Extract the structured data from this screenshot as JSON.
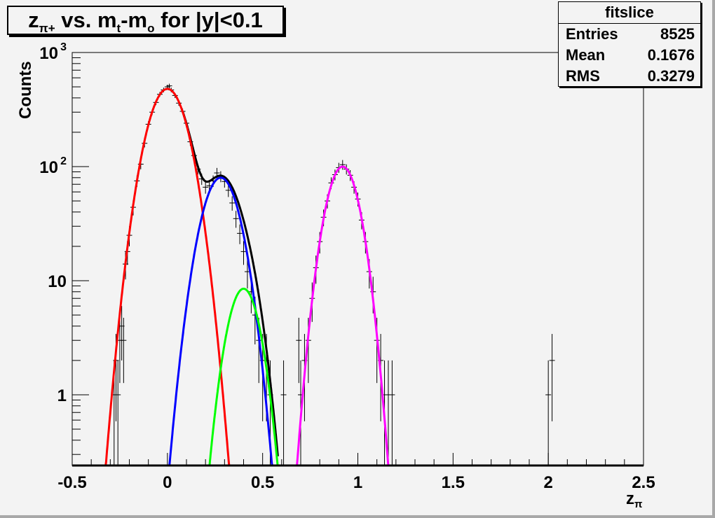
{
  "title": {
    "main": "z",
    "sub1": "π+",
    "mid": " vs. m",
    "sub2": "t",
    "mid2": "-m",
    "sub3": "o",
    "tail": " for |y|<0.1"
  },
  "stats": {
    "name": "fitslice",
    "rows": [
      {
        "label": "Entries",
        "value": "8525"
      },
      {
        "label": "Mean",
        "value": "0.1676"
      },
      {
        "label": "RMS",
        "value": "0.3279"
      }
    ]
  },
  "chart_data": {
    "type": "scatter",
    "xlabel_main": "z",
    "xlabel_sub": "π",
    "ylabel": "Counts",
    "xlim": [
      -0.5,
      2.5
    ],
    "ylim": [
      0.24,
      1000
    ],
    "yscale": "log",
    "grid": false,
    "x_ticks": [
      "-0.5",
      "0",
      "0.5",
      "1",
      "1.5",
      "2",
      "2.5"
    ],
    "y_ticks": [
      {
        "value": 1,
        "label": "1"
      },
      {
        "value": 10,
        "label": "10"
      },
      {
        "value": 100,
        "label": "10",
        "exp": "2"
      },
      {
        "value": 1000,
        "label": "10",
        "exp": "3"
      }
    ],
    "points": [
      [
        -0.28,
        1
      ],
      [
        -0.27,
        2
      ],
      [
        -0.26,
        1
      ],
      [
        -0.25,
        3
      ],
      [
        -0.24,
        4
      ],
      [
        -0.23,
        3
      ],
      [
        -0.22,
        14
      ],
      [
        -0.21,
        18
      ],
      [
        -0.2,
        25
      ],
      [
        -0.18,
        44
      ],
      [
        -0.16,
        75
      ],
      [
        -0.14,
        105
      ],
      [
        -0.12,
        160
      ],
      [
        -0.1,
        235
      ],
      [
        -0.08,
        300
      ],
      [
        -0.06,
        365
      ],
      [
        -0.04,
        430
      ],
      [
        -0.02,
        470
      ],
      [
        0.0,
        500
      ],
      [
        0.01,
        510
      ],
      [
        0.02,
        470
      ],
      [
        0.04,
        420
      ],
      [
        0.06,
        360
      ],
      [
        0.08,
        305
      ],
      [
        0.1,
        240
      ],
      [
        0.12,
        165
      ],
      [
        0.14,
        125
      ],
      [
        0.16,
        95
      ],
      [
        0.18,
        78
      ],
      [
        0.2,
        66
      ],
      [
        0.22,
        68
      ],
      [
        0.24,
        75
      ],
      [
        0.26,
        88
      ],
      [
        0.28,
        82
      ],
      [
        0.3,
        74
      ],
      [
        0.32,
        62
      ],
      [
        0.34,
        48
      ],
      [
        0.36,
        35
      ],
      [
        0.38,
        26
      ],
      [
        0.4,
        18
      ],
      [
        0.42,
        12
      ],
      [
        0.44,
        8
      ],
      [
        0.46,
        5
      ],
      [
        0.48,
        3
      ],
      [
        0.5,
        2
      ],
      [
        0.52,
        2
      ],
      [
        0.54,
        1
      ],
      [
        0.61,
        1
      ],
      [
        0.69,
        3
      ],
      [
        0.7,
        1
      ],
      [
        0.72,
        2
      ],
      [
        0.74,
        3
      ],
      [
        0.76,
        7
      ],
      [
        0.78,
        13
      ],
      [
        0.8,
        22
      ],
      [
        0.82,
        36
      ],
      [
        0.84,
        50
      ],
      [
        0.86,
        72
      ],
      [
        0.88,
        85
      ],
      [
        0.9,
        98
      ],
      [
        0.92,
        104
      ],
      [
        0.94,
        95
      ],
      [
        0.96,
        84
      ],
      [
        0.98,
        66
      ],
      [
        1.0,
        52
      ],
      [
        1.02,
        34
      ],
      [
        1.04,
        22
      ],
      [
        1.06,
        12
      ],
      [
        1.08,
        8
      ],
      [
        1.1,
        3
      ],
      [
        1.12,
        2
      ],
      [
        1.14,
        1
      ],
      [
        1.16,
        1
      ],
      [
        1.18,
        1
      ],
      [
        2.0,
        1
      ],
      [
        2.02,
        2
      ]
    ],
    "fits": [
      {
        "color": "#ff0000",
        "amplitude": 480,
        "mean": 0.0,
        "sigma": 0.083,
        "range": [
          -0.35,
          0.35
        ]
      },
      {
        "color": "#0000ff",
        "amplitude": 80,
        "mean": 0.28,
        "sigma": 0.079,
        "range": [
          -0.05,
          0.6
        ]
      },
      {
        "color": "#00ff00",
        "amplitude": 8.5,
        "mean": 0.4,
        "sigma": 0.067,
        "range": [
          0.1,
          0.6
        ]
      },
      {
        "color": "#ff00ff",
        "amplitude": 100,
        "mean": 0.92,
        "sigma": 0.069,
        "range": [
          0.6,
          1.25
        ]
      }
    ],
    "total_fit_color": "#000000"
  }
}
